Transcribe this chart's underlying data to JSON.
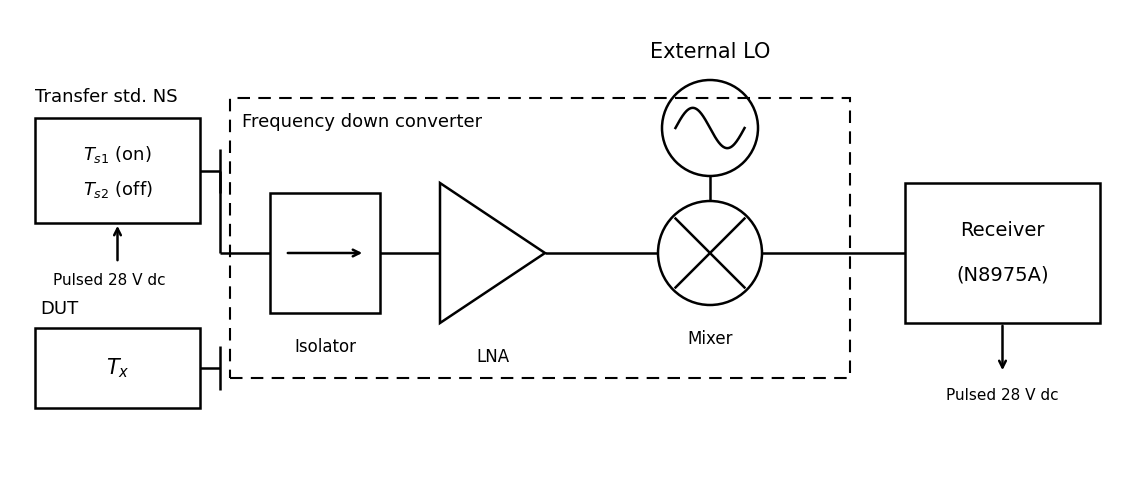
{
  "bg_color": "#ffffff",
  "fig_width": 11.43,
  "fig_height": 4.98,
  "dpi": 100,
  "transfer_ns_label": "Transfer std. NS",
  "dut_label": "DUT",
  "pulsed_dc_left_label": "Pulsed 28 V dc",
  "pulsed_dc_right_label": "Pulsed 28 V dc",
  "freq_label": "Frequency down converter",
  "isolator_label": "Isolator",
  "lna_label": "LNA",
  "mixer_label": "Mixer",
  "receiver_line1": "Receiver",
  "receiver_line2": "(N8975A)",
  "external_lo_label": "External LO",
  "transfer_ns_line1": "$T_{s1}$ (on)",
  "transfer_ns_line2": "$T_{s2}$ (off)",
  "dut_text": "$T_x$",
  "font_size_title": 15,
  "font_size_label": 13,
  "font_size_component": 12,
  "font_size_small": 11,
  "arrow_color": "#000000"
}
